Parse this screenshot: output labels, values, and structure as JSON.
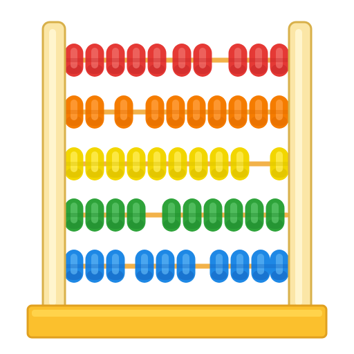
{
  "illustration": {
    "subject": "abacus-icon",
    "frame_colors": {
      "post_fill": "#FBE6A6",
      "post_edge": "#D8B04A",
      "base_fill": "#FBC02D",
      "base_top": "#FFD54F",
      "base_edge": "#E0A020",
      "rod": "#F2B24A"
    },
    "rows": [
      {
        "name": "red",
        "color": "#E53935",
        "highlight": "#EF6F6A",
        "shade": "#C62828",
        "slots": [
          0,
          1,
          2,
          3,
          4,
          5.2,
          6.2,
          7.9,
          8.9,
          9.9
        ]
      },
      {
        "name": "orange",
        "color": "#F57C00",
        "highlight": "#FFA040",
        "shade": "#E06C00",
        "slots": [
          0,
          1,
          2.4,
          3.9,
          4.9,
          5.9,
          6.9,
          7.9,
          8.9,
          9.9
        ]
      },
      {
        "name": "yellow",
        "color": "#F2D600",
        "highlight": "#FFEE58",
        "shade": "#D8BC00",
        "slots": [
          0,
          1,
          2,
          3,
          4,
          5,
          6,
          7,
          8,
          9.9
        ]
      },
      {
        "name": "green",
        "color": "#2EA33A",
        "highlight": "#5CC46A",
        "shade": "#1F8A2D",
        "slots": [
          0,
          1,
          2,
          3,
          4.7,
          5.7,
          6.7,
          7.7,
          8.7,
          9.7
        ]
      },
      {
        "name": "blue",
        "color": "#1E88E5",
        "highlight": "#5AB0F2",
        "shade": "#1565C0",
        "slots": [
          0,
          1,
          2,
          3.4,
          4.4,
          5.4,
          7.0,
          8.0,
          9.0,
          9.9
        ]
      }
    ]
  }
}
